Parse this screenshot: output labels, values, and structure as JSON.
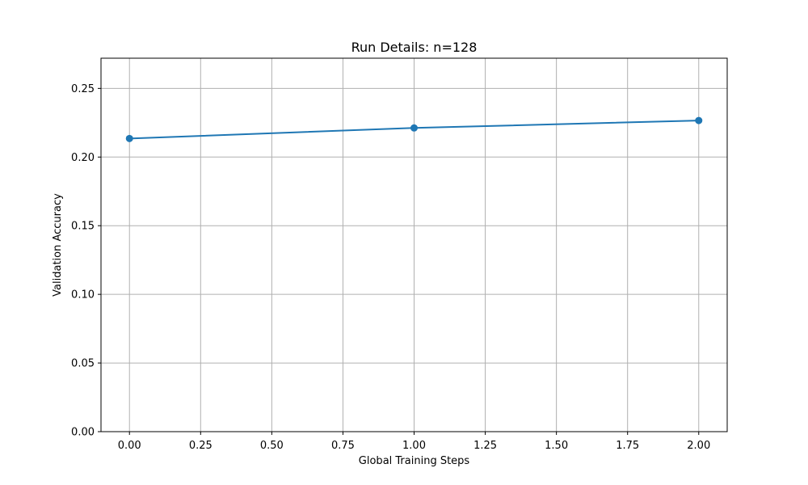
{
  "chart_data": {
    "type": "line",
    "title": "Run Details: n=128",
    "xlabel": "Global Training Steps",
    "ylabel": "Validation Accuracy",
    "xlim": [
      -0.1,
      2.1
    ],
    "ylim": [
      0.0,
      0.272
    ],
    "x_ticks": [
      0.0,
      0.25,
      0.5,
      0.75,
      1.0,
      1.25,
      1.5,
      1.75,
      2.0
    ],
    "x_tick_labels": [
      "0.00",
      "0.25",
      "0.50",
      "0.75",
      "1.00",
      "1.25",
      "1.50",
      "1.75",
      "2.00"
    ],
    "y_ticks": [
      0.0,
      0.05,
      0.1,
      0.15,
      0.2,
      0.25
    ],
    "y_tick_labels": [
      "0.00",
      "0.05",
      "0.10",
      "0.15",
      "0.20",
      "0.25"
    ],
    "grid": true,
    "series": [
      {
        "x": [
          0,
          1,
          2
        ],
        "values": [
          0.2135,
          0.2212,
          0.2266
        ],
        "color": "#1f77b4",
        "marker": "circle"
      }
    ]
  }
}
